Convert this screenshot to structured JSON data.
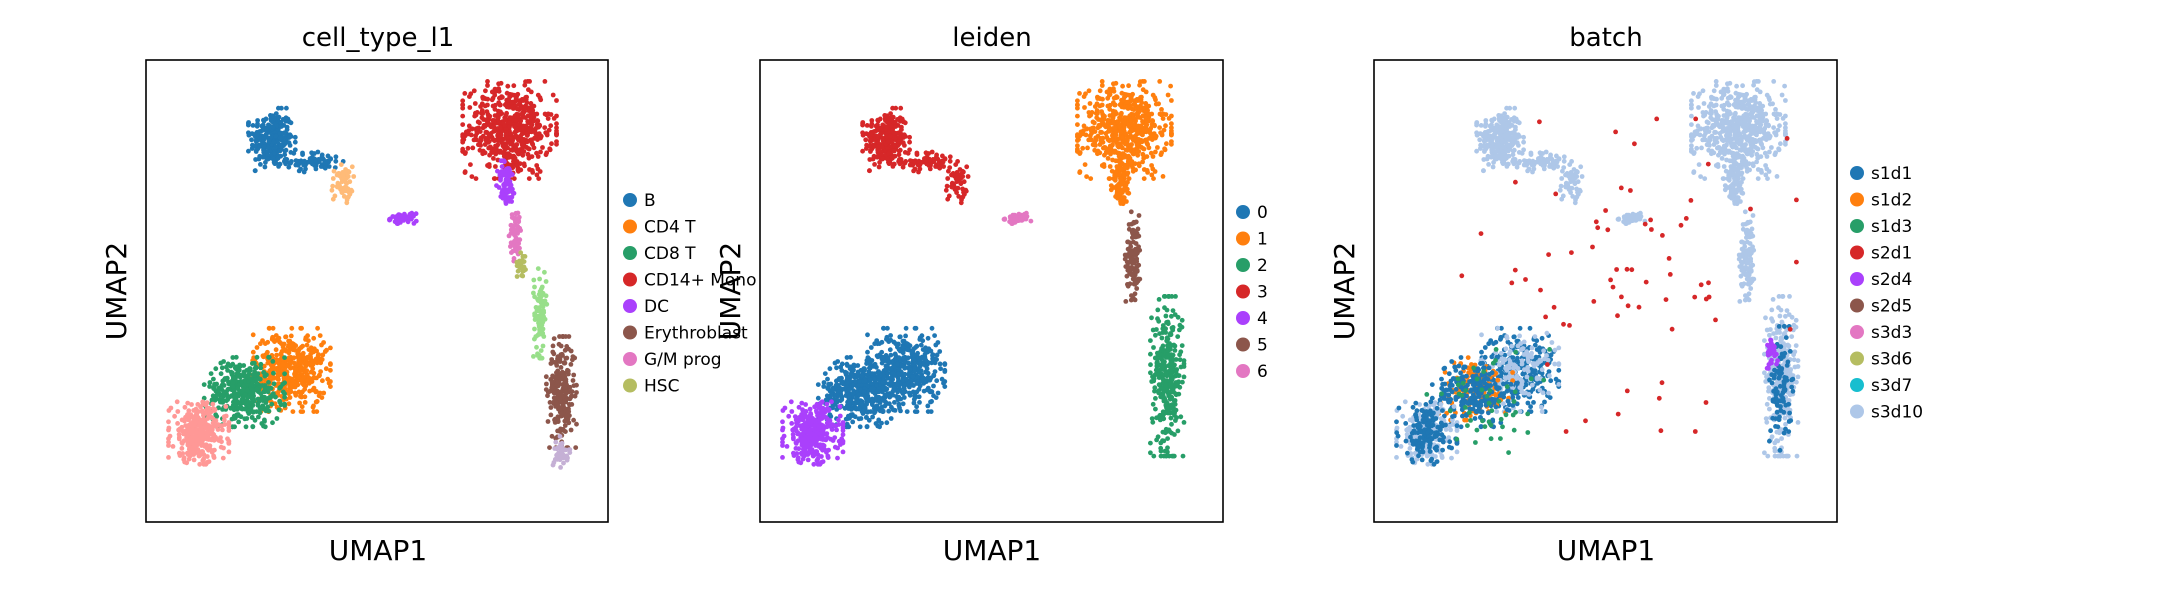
{
  "chart_data": [
    {
      "type": "scatter",
      "title": "cell_type_l1",
      "xlabel": "UMAP1",
      "ylabel": "UMAP2",
      "ticks": "none",
      "legend_placement": "right",
      "legend": [
        {
          "label": "B",
          "color": "#1f77b4"
        },
        {
          "label": "CD4 T",
          "color": "#ff7f0e"
        },
        {
          "label": "CD8 T",
          "color": "#279e68"
        },
        {
          "label": "CD14+ Mono",
          "color": "#d62728"
        },
        {
          "label": "DC",
          "color": "#aa40fc"
        },
        {
          "label": "Erythroblast",
          "color": "#8c564b"
        },
        {
          "label": "G/M prog",
          "color": "#e377c2"
        },
        {
          "label": "HSC",
          "color": "#b5bd61"
        }
      ],
      "unlabeled_colors": [
        "#ffbb78",
        "#98df8a",
        "#ff9896",
        "#c5b0d5",
        "#aec7e8"
      ],
      "clusters": [
        {
          "color": "#1f77b4",
          "cx": -6.2,
          "cy": 8.3,
          "rx": 0.7,
          "ry": 0.9,
          "n": 260
        },
        {
          "color": "#1f77b4",
          "cx": -4.8,
          "cy": 7.6,
          "rx": 0.9,
          "ry": 0.3,
          "n": 80
        },
        {
          "color": "#ffbb78",
          "cx": -3.9,
          "cy": 6.9,
          "rx": 0.35,
          "ry": 0.55,
          "n": 60
        },
        {
          "color": "#aa40fc",
          "cx": -1.9,
          "cy": 5.8,
          "rx": 0.4,
          "ry": 0.15,
          "n": 50
        },
        {
          "color": "#d62728",
          "cx": 1.6,
          "cy": 8.6,
          "rx": 1.4,
          "ry": 1.4,
          "n": 560
        },
        {
          "color": "#aa40fc",
          "cx": 1.5,
          "cy": 6.9,
          "rx": 0.3,
          "ry": 0.7,
          "n": 80
        },
        {
          "color": "#e377c2",
          "cx": 1.8,
          "cy": 5.3,
          "rx": 0.2,
          "ry": 0.8,
          "n": 60
        },
        {
          "color": "#b5bd61",
          "cx": 2.0,
          "cy": 4.4,
          "rx": 0.15,
          "ry": 0.4,
          "n": 30
        },
        {
          "color": "#98df8a",
          "cx": 2.6,
          "cy": 2.8,
          "rx": 0.2,
          "ry": 1.3,
          "n": 90
        },
        {
          "color": "#8c564b",
          "cx": 3.3,
          "cy": 0.3,
          "rx": 0.45,
          "ry": 1.6,
          "n": 230
        },
        {
          "color": "#c5b0d5",
          "cx": 3.3,
          "cy": -1.6,
          "rx": 0.25,
          "ry": 0.45,
          "n": 40
        },
        {
          "color": "#ff7f0e",
          "cx": -5.6,
          "cy": 1.0,
          "rx": 1.2,
          "ry": 1.2,
          "n": 420
        },
        {
          "color": "#279e68",
          "cx": -7.1,
          "cy": 0.3,
          "rx": 1.2,
          "ry": 1.0,
          "n": 400
        },
        {
          "color": "#ff9896",
          "cx": -8.6,
          "cy": -1.0,
          "rx": 0.9,
          "ry": 0.9,
          "n": 340
        }
      ]
    },
    {
      "type": "scatter",
      "title": "leiden",
      "xlabel": "UMAP1",
      "ylabel": "UMAP2",
      "ticks": "none",
      "legend_placement": "right",
      "legend": [
        {
          "label": "0",
          "color": "#1f77b4"
        },
        {
          "label": "1",
          "color": "#ff7f0e"
        },
        {
          "label": "2",
          "color": "#279e68"
        },
        {
          "label": "3",
          "color": "#d62728"
        },
        {
          "label": "4",
          "color": "#aa40fc"
        },
        {
          "label": "5",
          "color": "#8c564b"
        },
        {
          "label": "6",
          "color": "#e377c2"
        }
      ],
      "clusters": [
        {
          "color": "#d62728",
          "cx": -6.2,
          "cy": 8.3,
          "rx": 0.7,
          "ry": 0.9,
          "n": 260
        },
        {
          "color": "#d62728",
          "cx": -4.8,
          "cy": 7.6,
          "rx": 0.9,
          "ry": 0.3,
          "n": 80
        },
        {
          "color": "#d62728",
          "cx": -3.9,
          "cy": 6.9,
          "rx": 0.35,
          "ry": 0.55,
          "n": 50
        },
        {
          "color": "#e377c2",
          "cx": -1.9,
          "cy": 5.8,
          "rx": 0.4,
          "ry": 0.15,
          "n": 50
        },
        {
          "color": "#ff7f0e",
          "cx": 1.6,
          "cy": 8.6,
          "rx": 1.4,
          "ry": 1.4,
          "n": 560
        },
        {
          "color": "#ff7f0e",
          "cx": 1.5,
          "cy": 6.9,
          "rx": 0.3,
          "ry": 0.7,
          "n": 80
        },
        {
          "color": "#8c564b",
          "cx": 1.9,
          "cy": 4.6,
          "rx": 0.25,
          "ry": 1.3,
          "n": 110
        },
        {
          "color": "#279e68",
          "cx": 3.0,
          "cy": 0.8,
          "rx": 0.5,
          "ry": 2.3,
          "n": 320
        },
        {
          "color": "#1f77b4",
          "cx": -5.6,
          "cy": 1.0,
          "rx": 1.2,
          "ry": 1.2,
          "n": 420
        },
        {
          "color": "#1f77b4",
          "cx": -7.1,
          "cy": 0.3,
          "rx": 1.2,
          "ry": 1.0,
          "n": 400
        },
        {
          "color": "#aa40fc",
          "cx": -8.6,
          "cy": -1.0,
          "rx": 0.9,
          "ry": 0.9,
          "n": 340
        }
      ]
    },
    {
      "type": "scatter",
      "title": "batch",
      "xlabel": "UMAP1",
      "ylabel": "UMAP2",
      "ticks": "none",
      "legend_placement": "right",
      "legend": [
        {
          "label": "s1d1",
          "color": "#1f77b4"
        },
        {
          "label": "s1d2",
          "color": "#ff7f0e"
        },
        {
          "label": "s1d3",
          "color": "#279e68"
        },
        {
          "label": "s2d1",
          "color": "#d62728"
        },
        {
          "label": "s2d4",
          "color": "#aa40fc"
        },
        {
          "label": "s2d5",
          "color": "#8c564b"
        },
        {
          "label": "s3d3",
          "color": "#e377c2"
        },
        {
          "label": "s3d6",
          "color": "#b5bd61"
        },
        {
          "label": "s3d7",
          "color": "#17becf"
        },
        {
          "label": "s3d10",
          "color": "#aec7e8"
        }
      ],
      "clusters": [
        {
          "color": "#aec7e8",
          "cx": -6.2,
          "cy": 8.3,
          "rx": 0.7,
          "ry": 0.9,
          "n": 260
        },
        {
          "color": "#aec7e8",
          "cx": -4.8,
          "cy": 7.6,
          "rx": 0.9,
          "ry": 0.3,
          "n": 80
        },
        {
          "color": "#aec7e8",
          "cx": -3.9,
          "cy": 6.9,
          "rx": 0.35,
          "ry": 0.55,
          "n": 50
        },
        {
          "color": "#aec7e8",
          "cx": -1.9,
          "cy": 5.8,
          "rx": 0.4,
          "ry": 0.15,
          "n": 50
        },
        {
          "color": "#aec7e8",
          "cx": 1.6,
          "cy": 8.6,
          "rx": 1.4,
          "ry": 1.4,
          "n": 560
        },
        {
          "color": "#aec7e8",
          "cx": 1.5,
          "cy": 6.9,
          "rx": 0.3,
          "ry": 0.7,
          "n": 80
        },
        {
          "color": "#aec7e8",
          "cx": 1.9,
          "cy": 4.6,
          "rx": 0.25,
          "ry": 1.3,
          "n": 110
        },
        {
          "color": "#aec7e8",
          "cx": 3.0,
          "cy": 0.8,
          "rx": 0.5,
          "ry": 2.3,
          "n": 300
        },
        {
          "color": "#1f77b4",
          "cx": 3.0,
          "cy": 0.4,
          "rx": 0.35,
          "ry": 1.8,
          "n": 90
        },
        {
          "color": "#aa40fc",
          "cx": 2.7,
          "cy": 1.6,
          "rx": 0.2,
          "ry": 0.5,
          "n": 30
        },
        {
          "color": "#1f77b4",
          "cx": -5.6,
          "cy": 1.0,
          "rx": 1.2,
          "ry": 1.2,
          "n": 260
        },
        {
          "color": "#aec7e8",
          "cx": -5.6,
          "cy": 1.0,
          "rx": 1.2,
          "ry": 1.2,
          "n": 150
        },
        {
          "color": "#ff7f0e",
          "cx": -7.0,
          "cy": 0.4,
          "rx": 1.1,
          "ry": 0.9,
          "n": 130
        },
        {
          "color": "#1f77b4",
          "cx": -7.1,
          "cy": 0.3,
          "rx": 1.2,
          "ry": 1.0,
          "n": 220
        },
        {
          "color": "#aec7e8",
          "cx": -8.6,
          "cy": -1.0,
          "rx": 0.9,
          "ry": 0.9,
          "n": 200
        },
        {
          "color": "#1f77b4",
          "cx": -8.6,
          "cy": -1.0,
          "rx": 0.9,
          "ry": 0.9,
          "n": 150
        },
        {
          "color": "#279e68",
          "cx": -6.5,
          "cy": 0.0,
          "rx": 2.0,
          "ry": 1.5,
          "n": 50
        },
        {
          "color": "#d62728",
          "cx": -2.0,
          "cy": 4.0,
          "rx": 5.0,
          "ry": 4.5,
          "n": 70
        }
      ]
    }
  ],
  "domain": {
    "x": [
      -10,
      4.5
    ],
    "y": [
      -3.5,
      10.5
    ]
  }
}
